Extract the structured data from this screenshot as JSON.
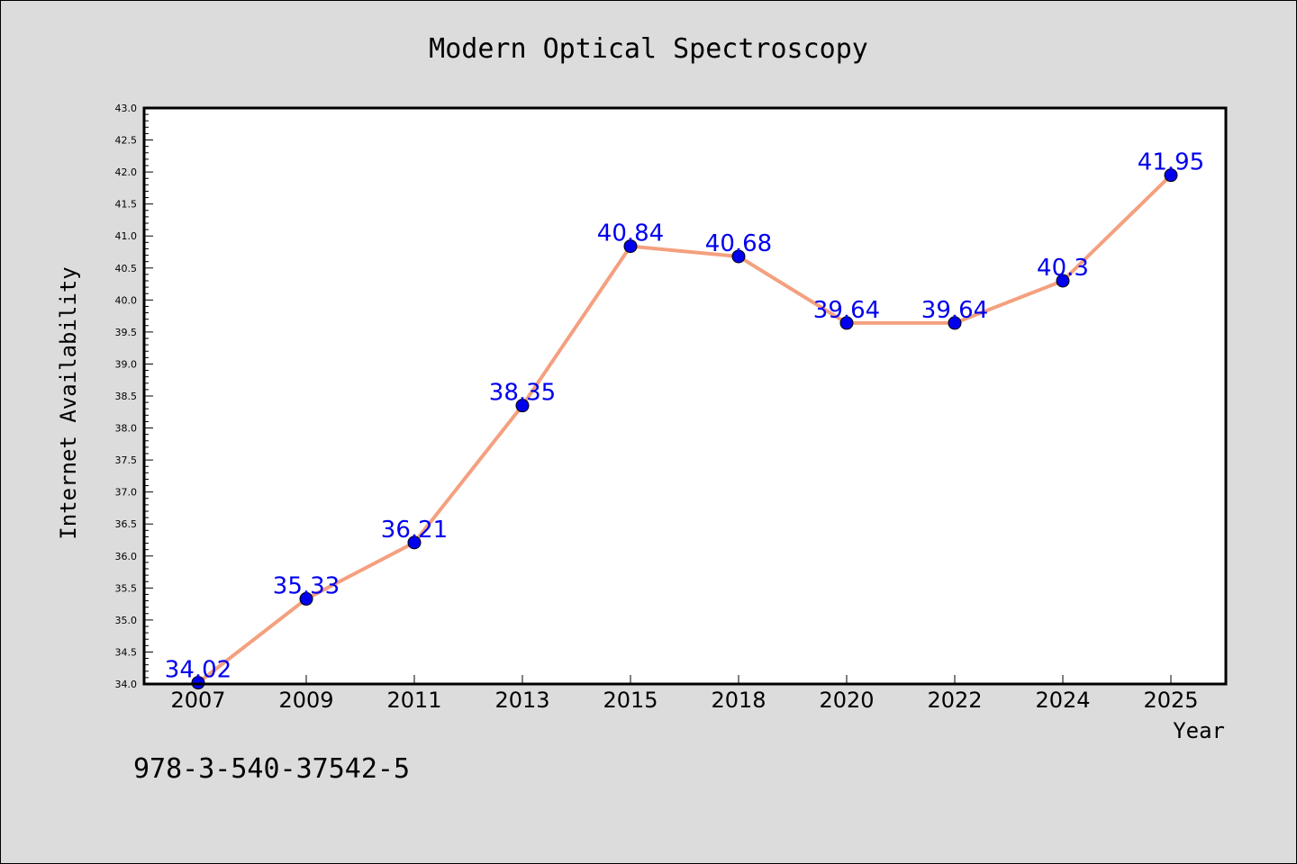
{
  "chart_data": {
    "type": "line",
    "title": "Modern Optical Spectroscopy",
    "xlabel": "Year",
    "ylabel": "Internet Availability",
    "categories": [
      "2007",
      "2009",
      "2011",
      "2013",
      "2015",
      "2018",
      "2020",
      "2022",
      "2024",
      "2025"
    ],
    "series": [
      {
        "values": [
          34.02,
          35.33,
          36.21,
          38.35,
          40.84,
          40.68,
          39.64,
          39.64,
          40.3,
          41.95
        ],
        "labels": [
          "34.02",
          "35.33",
          "36.21",
          "38.35",
          "40.84",
          "40.68",
          "39.64",
          "39.64",
          "40.3",
          "41.95"
        ]
      }
    ],
    "ylim": [
      34.0,
      43.0
    ],
    "ytick_step": 0.5,
    "ytick_labels": [
      "34.0",
      "34.5",
      "35.0",
      "35.5",
      "36.0",
      "36.5",
      "37.0",
      "37.5",
      "38.0",
      "38.5",
      "39.0",
      "39.5",
      "40.0",
      "40.5",
      "41.0",
      "41.5",
      "42.0",
      "42.5",
      "43.0"
    ],
    "grid": false,
    "line_color": "#f4a07f",
    "marker_color": "#0000ee",
    "label_color": "#0000ee"
  },
  "footer": {
    "isbn": "978-3-540-37542-5"
  }
}
